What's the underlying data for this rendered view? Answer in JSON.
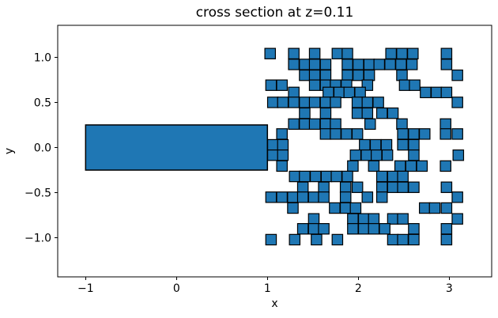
{
  "figure": {
    "background": "#ffffff"
  },
  "title": "cross section at z=0.11",
  "axes": {
    "xlabel": "x",
    "ylabel": "y"
  },
  "chart_data": {
    "type": "patches",
    "title": "cross section at z=0.11",
    "xlabel": "x",
    "ylabel": "y",
    "xlim": [
      -1.307,
      3.467
    ],
    "ylim": [
      -1.432,
      1.353
    ],
    "xticks": [
      -1,
      0,
      1,
      2,
      3
    ],
    "yticks": [
      -1.0,
      -0.5,
      0.0,
      0.5,
      1.0
    ],
    "xtick_labels": [
      "−1",
      "0",
      "1",
      "2",
      "3"
    ],
    "ytick_labels": [
      "−1.0",
      "−0.5",
      "0.0",
      "0.5",
      "1.0"
    ],
    "grid": false,
    "legend": null,
    "fill_color": "#1f77b4",
    "edge_color": "#000000",
    "solid_bar": {
      "x0": -1.0,
      "x1": 1.0,
      "y0": -0.25,
      "y1": 0.25
    },
    "square_size": 0.116,
    "square_rows": [
      {
        "y": 1.04,
        "x": [
          1.03,
          1.29,
          1.52,
          1.77,
          1.88,
          2.36,
          2.48,
          2.6,
          2.97
        ]
      },
      {
        "y": 0.92,
        "x": [
          1.29,
          1.41,
          1.52,
          1.64,
          1.88,
          2.0,
          2.12,
          2.23,
          2.35,
          2.47,
          2.59,
          2.97
        ]
      },
      {
        "y": 0.8,
        "x": [
          1.41,
          1.52,
          1.64,
          1.88,
          2.0,
          2.12,
          2.48,
          3.09
        ]
      },
      {
        "y": 0.69,
        "x": [
          1.04,
          1.16,
          1.52,
          1.64,
          1.75,
          1.87,
          2.1,
          2.51,
          2.62
        ]
      },
      {
        "y": 0.61,
        "x": [
          1.29,
          1.67,
          1.79,
          1.9,
          2.02,
          2.74,
          2.86,
          2.97
        ]
      },
      {
        "y": 0.5,
        "x": [
          1.06,
          1.17,
          1.29,
          1.41,
          1.52,
          1.64,
          1.75,
          1.99,
          2.1,
          2.22,
          3.09
        ]
      },
      {
        "y": 0.38,
        "x": [
          1.41,
          1.64,
          1.99,
          2.1,
          2.26,
          2.38
        ]
      },
      {
        "y": 0.26,
        "x": [
          1.29,
          1.41,
          1.52,
          1.64,
          1.75,
          2.13,
          2.48,
          2.96
        ]
      },
      {
        "y": 0.15,
        "x": [
          1.16,
          1.64,
          1.75,
          1.87,
          1.99,
          2.49,
          2.61,
          2.73,
          2.96,
          3.09
        ]
      },
      {
        "y": 0.03,
        "x": [
          1.06,
          1.17,
          2.07,
          2.19,
          2.31,
          2.49,
          2.61
        ]
      },
      {
        "y": -0.085,
        "x": [
          1.06,
          1.17,
          1.97,
          2.09,
          2.2,
          2.32,
          2.61,
          3.1
        ]
      },
      {
        "y": -0.205,
        "x": [
          1.16,
          1.94,
          2.17,
          2.46,
          2.58,
          2.7,
          2.96
        ]
      },
      {
        "y": -0.32,
        "x": [
          1.3,
          1.41,
          1.53,
          1.65,
          1.76,
          1.88,
          2.26,
          2.38,
          2.49
        ]
      },
      {
        "y": -0.44,
        "x": [
          1.39,
          1.62,
          1.86,
          1.99,
          2.26,
          2.38,
          2.49,
          2.61,
          2.97
        ]
      },
      {
        "y": -0.55,
        "x": [
          1.04,
          1.16,
          1.28,
          1.39,
          1.51,
          1.62,
          1.86,
          2.1,
          2.26,
          3.09
        ]
      },
      {
        "y": -0.67,
        "x": [
          1.28,
          1.74,
          1.86,
          1.97,
          2.73,
          2.84,
          2.97
        ]
      },
      {
        "y": -0.79,
        "x": [
          1.51,
          1.94,
          2.06,
          2.17,
          2.38,
          2.49,
          3.09
        ]
      },
      {
        "y": -0.9,
        "x": [
          1.39,
          1.51,
          1.62,
          1.94,
          2.06,
          2.17,
          2.29,
          2.61,
          2.97
        ]
      },
      {
        "y": -1.02,
        "x": [
          1.04,
          1.3,
          1.54,
          1.77,
          2.38,
          2.49,
          2.61,
          2.97
        ]
      }
    ]
  }
}
